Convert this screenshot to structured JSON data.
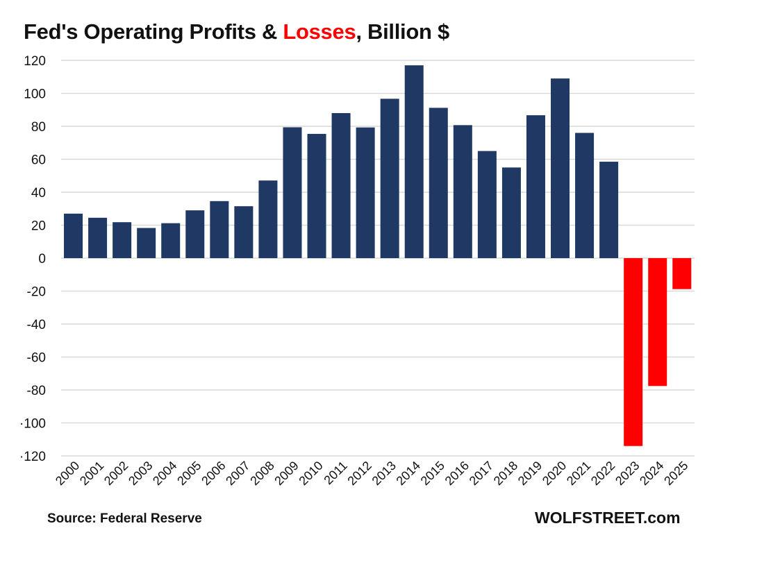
{
  "chart_data": {
    "type": "bar",
    "title_parts": [
      "Fed's Operating Profits & ",
      "Losses",
      ", Billion $"
    ],
    "categories": [
      "2000",
      "2001",
      "2002",
      "2003",
      "2004",
      "2005",
      "2006",
      "2007",
      "2008",
      "2009",
      "2010",
      "2011",
      "2012",
      "2013",
      "2014",
      "2015",
      "2016",
      "2017",
      "2018",
      "2019",
      "2020",
      "2021",
      "2022",
      "2023",
      "2024",
      "2025"
    ],
    "values": [
      27,
      24.5,
      21.8,
      18.3,
      21.2,
      29,
      34.6,
      31.5,
      47.1,
      79.4,
      75.4,
      88,
      79.3,
      96.7,
      117,
      91.2,
      80.7,
      65,
      55,
      86.7,
      109,
      76,
      58.5,
      -114,
      -77.6,
      -18.8
    ],
    "ylim": [
      -120,
      120
    ],
    "yticks": [
      120,
      100,
      80,
      60,
      40,
      20,
      0,
      -20,
      -40,
      -60,
      -80,
      -100,
      -120
    ],
    "ytick_labels": [
      "120",
      "100",
      "80",
      "60",
      "40",
      "20",
      "0",
      "-20",
      "-40",
      "-60",
      "-80",
      "·100",
      "·120"
    ],
    "grid": true,
    "xlabel": "",
    "ylabel": "",
    "colors": {
      "profit": "#1f3864",
      "loss": "#ff0000",
      "grid": "#d9d9d9"
    }
  },
  "footer": {
    "source": "Source: Federal Reserve",
    "watermark": "WOLFSTREET.com"
  }
}
